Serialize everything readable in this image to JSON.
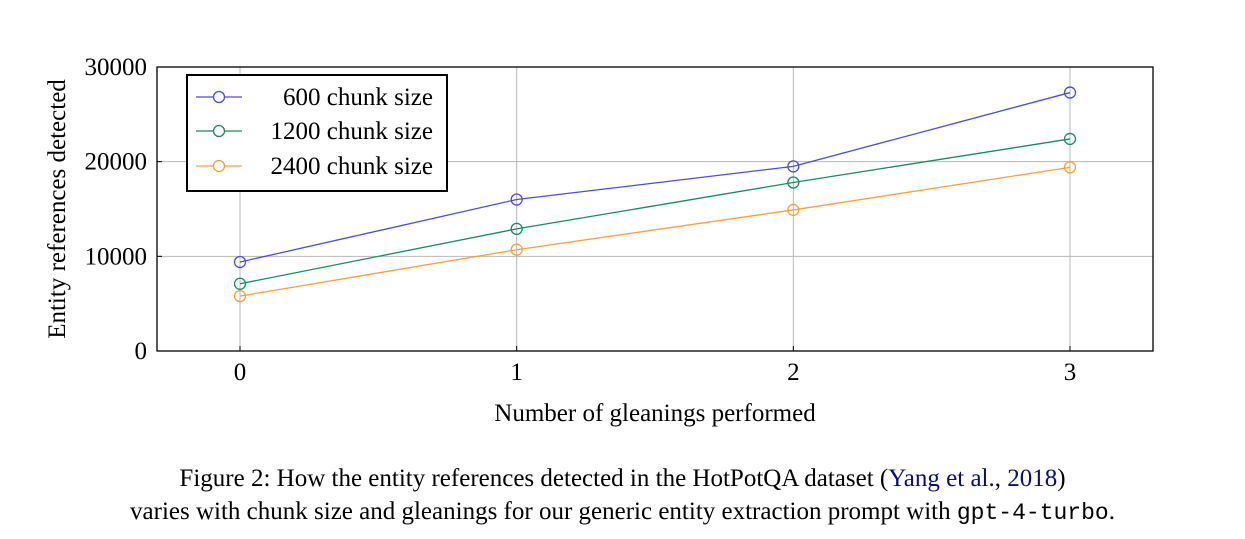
{
  "chart_data": {
    "type": "line",
    "xlabel": "Number of gleanings performed",
    "ylabel": "Entity references detected",
    "x": [
      0,
      1,
      2,
      3
    ],
    "xticks": [
      "0",
      "1",
      "2",
      "3"
    ],
    "xlim": [
      -0.3,
      3.3
    ],
    "ylim": [
      0,
      30000
    ],
    "yticks": [
      "0",
      "10000",
      "20000",
      "30000"
    ],
    "ytick_values": [
      0,
      10000,
      20000,
      30000
    ],
    "grid": true,
    "legend_position": "top-left",
    "series": [
      {
        "name": "600 chunk size",
        "color": "#4b4bdc",
        "values": [
          9400,
          16000,
          19500,
          27300
        ]
      },
      {
        "name": "1200 chunk size",
        "color": "#1a8a5a",
        "values": [
          7100,
          12900,
          17800,
          22400
        ]
      },
      {
        "name": "2400 chunk size",
        "color": "#f5a03c",
        "values": [
          5800,
          10700,
          14900,
          19400
        ]
      }
    ]
  },
  "caption": {
    "prefix": "Figure 2: How the entity references detected in the HotPotQA dataset (",
    "cite_author": "Yang et al.",
    "cite_sep": ", ",
    "cite_year": "2018",
    "suffix": ")",
    "line2_text": "varies with chunk size and gleanings for our generic entity extraction prompt with ",
    "line2_code": "gpt-4-turbo",
    "line2_end": "."
  }
}
